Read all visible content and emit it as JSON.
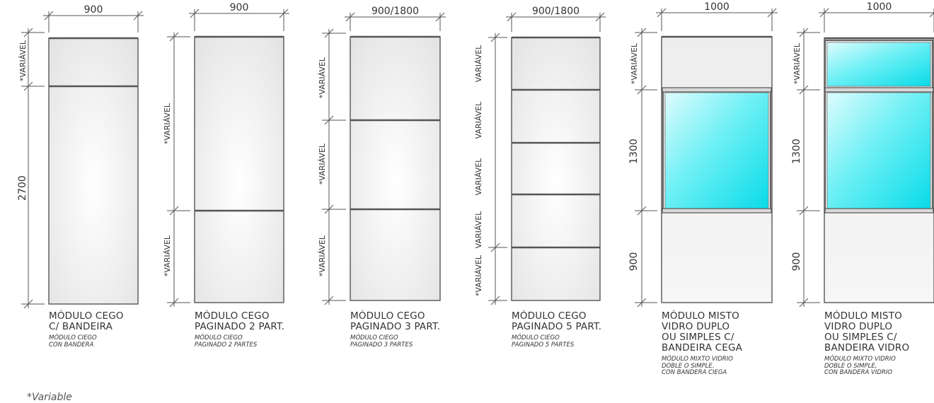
{
  "footnote": "*Variable",
  "colors": {
    "line": "#555555",
    "panel_edge": "#f0f0f0",
    "panel_center": "#ffffff",
    "glass": "#15e3ee"
  },
  "modules": [
    {
      "top_dim": "900",
      "side_dims": [
        "*VARIÁVEL",
        "2700"
      ],
      "title": "MÓDULO CEGO\nC/ BANDEIRA",
      "subtitle": "MÓDULO CIEGO\nCON BANDERA"
    },
    {
      "top_dim": "900",
      "side_dims": [
        "*VARIÁVEL",
        "*VARIÁVEL"
      ],
      "title": "MÓDULO CEGO\nPAGINADO 2 PART.",
      "subtitle": "MÓDULO CIEGO\nPAGINADO 2 PARTES"
    },
    {
      "top_dim": "900/1800",
      "side_dims": [
        "*VARIÁVEL",
        "*VARIÁVEL",
        "*VARIÁVEL"
      ],
      "title": "MÓDULO CEGO\nPAGINADO 3 PART.",
      "subtitle": "MÓDULO CIEGO\nPAGINADO 3 PARTES"
    },
    {
      "top_dim": "900/1800",
      "side_dims": [
        "VARIÁVEL",
        "VARIÁVEL",
        "VARIÁVEL",
        "VARIÁVEL",
        "*VARIÁVEL"
      ],
      "title": "MÓDULO CEGO\nPAGINADO 5 PART.",
      "subtitle": "MÓDULO CIEGO\nPAGINADO 5 PARTES"
    },
    {
      "top_dim": "1000",
      "side_dims": [
        "*VARIÁVEL",
        "1300",
        "900"
      ],
      "title": "MÓDULO MISTO\nVIDRO DUPLO\nOU SIMPLES C/\nBANDEIRA CEGA",
      "subtitle": "MÓDULO MIXTO VIDRIO\nDOBLE O SIMPLE.\nCON BANDERA CIEGA"
    },
    {
      "top_dim": "1000",
      "side_dims": [
        "*VARIÁVEL",
        "1300",
        "900"
      ],
      "title": "MÓDULO MISTO\nVIDRO DUPLO\nOU SIMPLES C/\nBANDEIRA VIDRO",
      "subtitle": "MÓDULO MIXTO VIDRIO\nDOBLE O SIMPLE,\nCON BANDERA VIDRIO"
    }
  ]
}
